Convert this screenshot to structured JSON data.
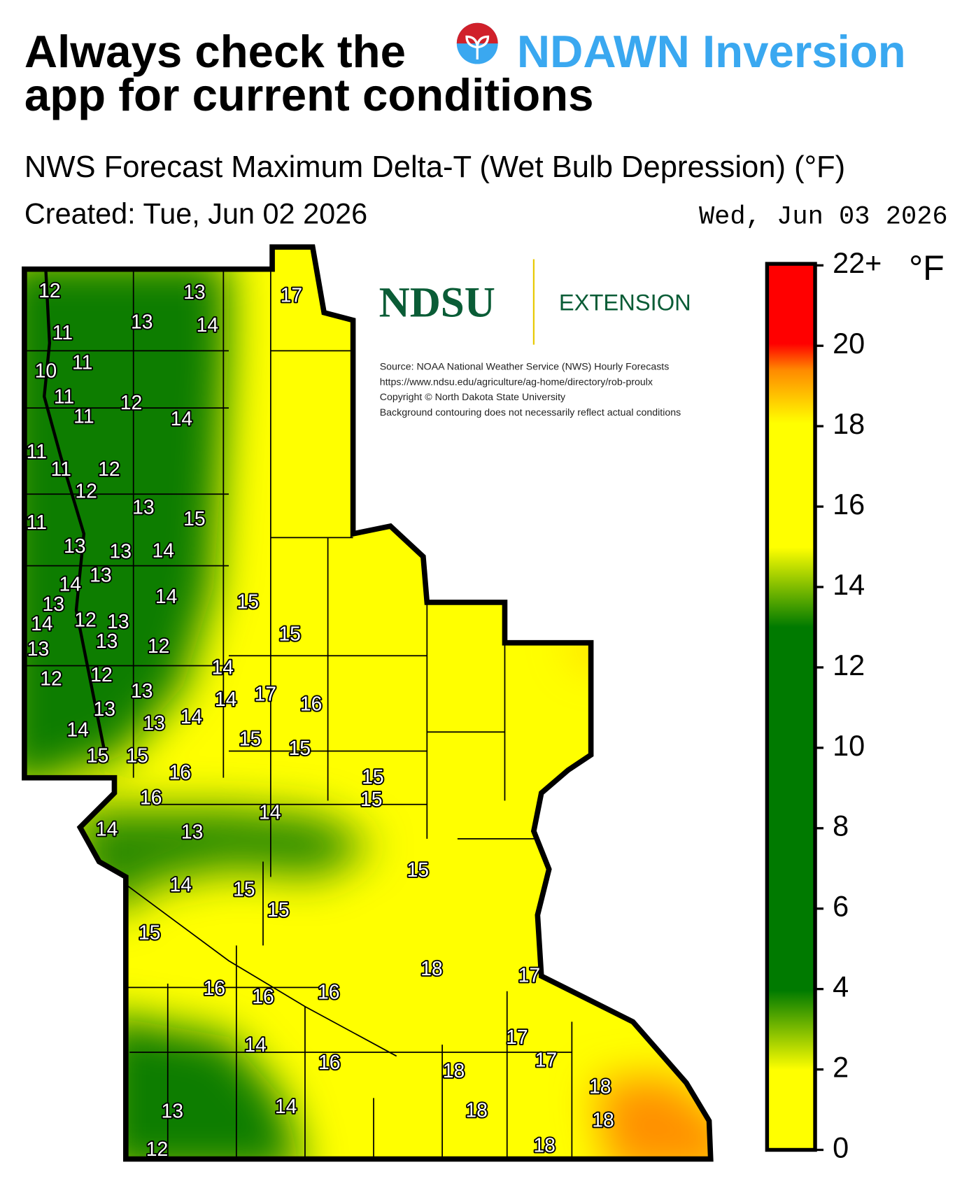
{
  "header": {
    "title_prefix": "Always check the",
    "app_name": "NDAWN Inversion",
    "title_line2": "app for current conditions"
  },
  "subtitle": "NWS Forecast Maximum Delta-T (Wet Bulb Depression) (°F)",
  "created": "Created: Tue, Jun 02 2026",
  "forecast_date": "Wed, Jun 03 2026",
  "logo": {
    "name": "NDSU",
    "unit": "EXTENSION"
  },
  "notes": [
    "Source: NOAA National Weather Service (NWS) Hourly Forecasts",
    "https://www.ndsu.edu/agriculture/ag-home/directory/rob-proulx",
    "Copyright © North Dakota State University",
    "Background contouring does not necessarily reflect actual conditions"
  ],
  "colorbar": {
    "unit": "°F",
    "lim": [
      0,
      22
    ],
    "ticks": [
      0,
      2,
      4,
      6,
      8,
      10,
      12,
      14,
      16,
      18,
      20,
      {
        "value": 22,
        "label": "22+"
      }
    ]
  },
  "map": {
    "labels": [
      12,
      13,
      17,
      13,
      14,
      11,
      10,
      11,
      11,
      12,
      11,
      14,
      11,
      11,
      12,
      12,
      13,
      15,
      11,
      13,
      13,
      14,
      14,
      13,
      14,
      15,
      13,
      14,
      12,
      13,
      13,
      12,
      13,
      15,
      14,
      12,
      12,
      13,
      17,
      14,
      16,
      13,
      14,
      13,
      14,
      15,
      15,
      15,
      15,
      16,
      15,
      16,
      15,
      14,
      14,
      13,
      15,
      14,
      15,
      15,
      15,
      18,
      17,
      16,
      16,
      16,
      17,
      14,
      17,
      16,
      18,
      18,
      14,
      13,
      18,
      18,
      12,
      18
    ]
  }
}
